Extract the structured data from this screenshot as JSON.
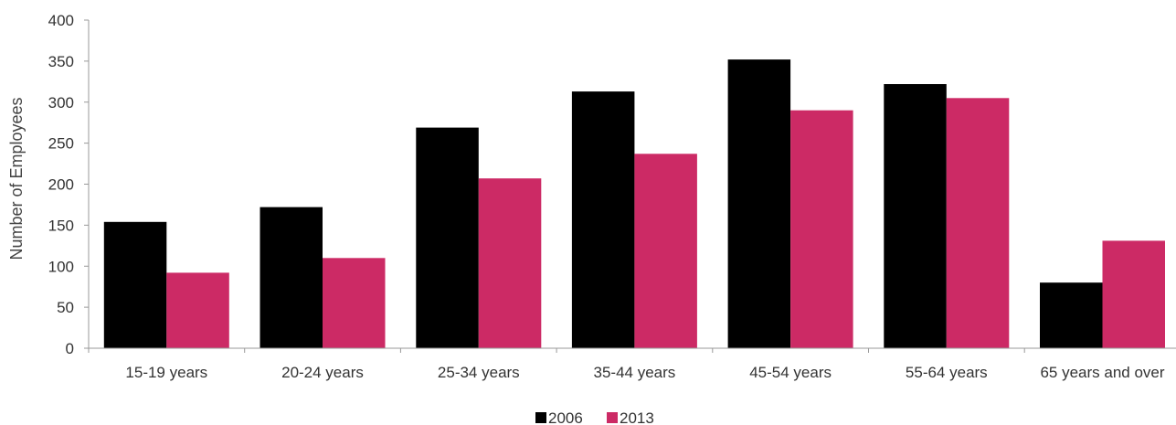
{
  "chart_data": {
    "type": "bar",
    "title": "",
    "xlabel": "",
    "ylabel": "Number of Employees",
    "ylim": [
      0,
      400
    ],
    "yticks": [
      0,
      50,
      100,
      150,
      200,
      250,
      300,
      350,
      400
    ],
    "grid": false,
    "legend_position": "bottom",
    "categories": [
      "15-19 years",
      "20-24 years",
      "25-34 years",
      "35-44 years",
      "45-54 years",
      "55-64 years",
      "65 years and over"
    ],
    "series": [
      {
        "name": "2006",
        "color": "#000000",
        "values": [
          154,
          172,
          269,
          313,
          352,
          322,
          80
        ]
      },
      {
        "name": "2013",
        "color": "#cc2a65",
        "values": [
          92,
          110,
          207,
          237,
          290,
          305,
          131
        ]
      }
    ]
  }
}
